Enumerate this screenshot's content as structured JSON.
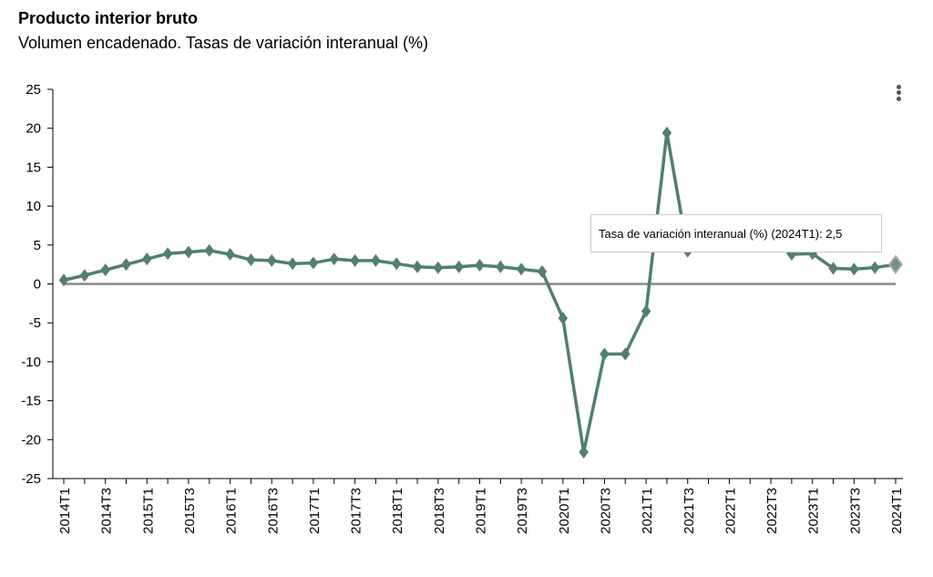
{
  "chart_data": {
    "type": "line",
    "title": "Producto interior bruto",
    "subtitle": "Volumen encadenado. Tasas de variación interanual (%)",
    "xlabel": "",
    "ylabel": "",
    "ylim": [
      -25,
      25
    ],
    "yticks": [
      "25",
      "20",
      "15",
      "10",
      "5",
      "0",
      "-5",
      "-10",
      "-15",
      "-20",
      "-25"
    ],
    "ytick_values": [
      25,
      20,
      15,
      10,
      5,
      0,
      -5,
      -10,
      -15,
      -20,
      -25
    ],
    "x": [
      "2014T1",
      "2014T2",
      "2014T3",
      "2014T4",
      "2015T1",
      "2015T2",
      "2015T3",
      "2015T4",
      "2016T1",
      "2016T2",
      "2016T3",
      "2016T4",
      "2017T1",
      "2017T2",
      "2017T3",
      "2017T4",
      "2018T1",
      "2018T2",
      "2018T3",
      "2018T4",
      "2019T1",
      "2019T2",
      "2019T3",
      "2019T4",
      "2020T1",
      "2020T2",
      "2020T3",
      "2020T4",
      "2021T1",
      "2021T2",
      "2021T3",
      "2021T4",
      "2022T1",
      "2022T2",
      "2022T3",
      "2022T4",
      "2023T1",
      "2023T2",
      "2023T3",
      "2023T4",
      "2024T1"
    ],
    "series": [
      {
        "name": "Tasa de variación interanual (%)",
        "color": "#527e74",
        "values": [
          0.5,
          1.1,
          1.8,
          2.5,
          3.2,
          3.9,
          4.1,
          4.3,
          3.8,
          3.1,
          3.0,
          2.6,
          2.7,
          3.2,
          3.0,
          3.0,
          2.6,
          2.2,
          2.1,
          2.2,
          2.4,
          2.2,
          1.9,
          1.6,
          -4.4,
          -21.6,
          -9.0,
          -9.0,
          -3.5,
          19.4,
          4.2,
          5.5,
          6.7,
          7.2,
          5.4,
          3.8,
          3.9,
          2.0,
          1.9,
          2.1,
          2.5
        ]
      }
    ],
    "highlighted": "2024T1",
    "grid": false,
    "legend": "none"
  },
  "tooltip": {
    "text": "Tasa de variación interanual (%) (2024T1): 2,5"
  },
  "menu": {
    "icon": "more-vertical-icon"
  }
}
